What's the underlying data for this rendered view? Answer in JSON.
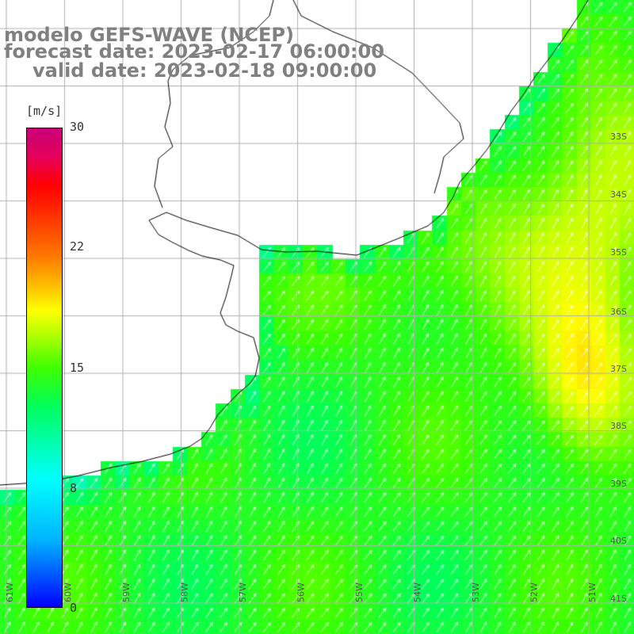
{
  "title": {
    "line1": "modelo GEFS-WAVE (NCEP)",
    "line2": "forecast date: 2023-02-17 06:00:00",
    "line3": "valid date: 2023-02-18 09:00:00"
  },
  "colorbar": {
    "unit": "[m/s]",
    "ticks": [
      {
        "label": "30",
        "value": 30
      },
      {
        "label": "22",
        "value": 22
      },
      {
        "label": "15",
        "value": 15
      },
      {
        "label": "8",
        "value": 8
      },
      {
        "label": "0",
        "value": 0
      }
    ]
  },
  "map": {
    "lat_labels": [
      "33S",
      "34S",
      "35S",
      "36S",
      "37S",
      "38S",
      "39S",
      "40S",
      "41S"
    ],
    "lon_labels": [
      "61W",
      "60W",
      "59W",
      "58W",
      "57W",
      "56W",
      "55W",
      "54W",
      "53W",
      "52W",
      "51W"
    ],
    "wind_direction": "SW to NE",
    "max_speed_area": "east of 37S",
    "colors": {
      "land": "#ffffff",
      "coast": "#000000",
      "grid": "#b0b0b0",
      "arrows": "#ffffff"
    }
  }
}
